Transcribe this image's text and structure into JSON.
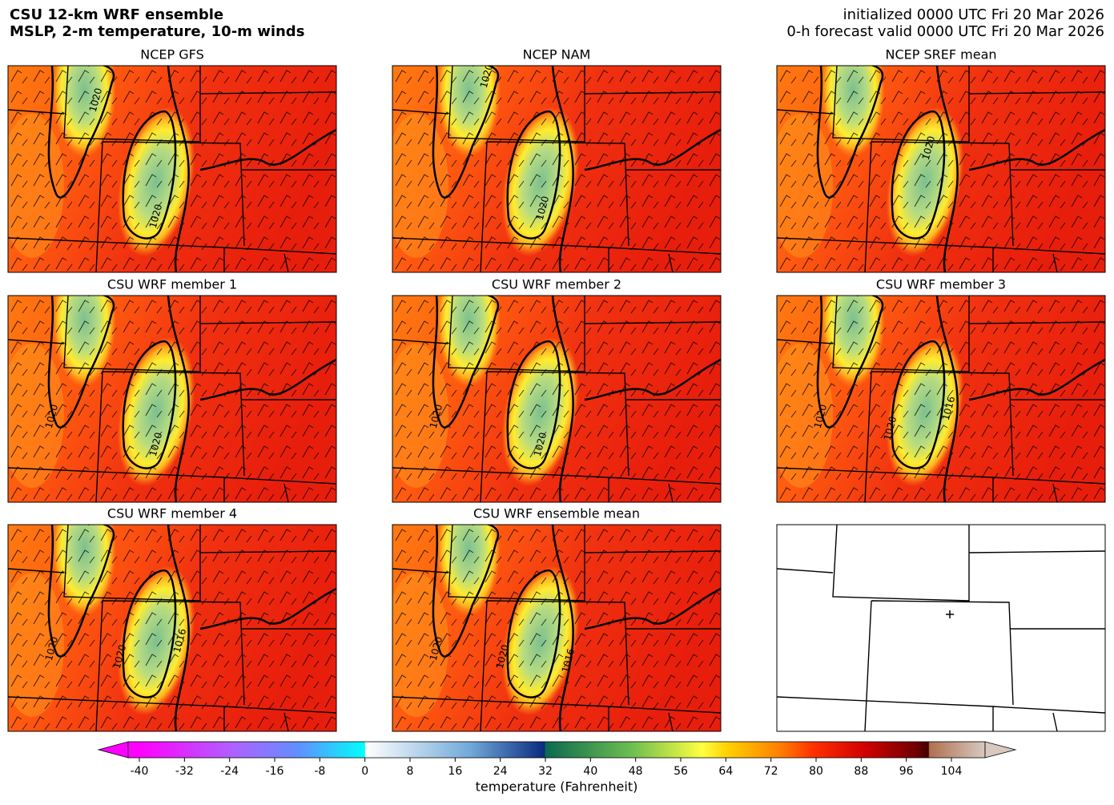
{
  "header": {
    "title": [
      "CSU 12-km WRF ensemble",
      "MSLP, 2-m temperature, 10-m winds"
    ],
    "init": "initialized 0000 UTC Fri 20 Mar 2026",
    "valid": "0-h forecast valid 0000 UTC Fri 20 Mar 2026"
  },
  "panels": [
    {
      "title": "NCEP GFS",
      "contour_labels": [
        "1020",
        "1020"
      ]
    },
    {
      "title": "NCEP NAM",
      "contour_labels": [
        "1020",
        "1020"
      ]
    },
    {
      "title": "NCEP SREF mean",
      "contour_labels": [
        "1020"
      ]
    },
    {
      "title": "CSU WRF member 1",
      "contour_labels": [
        "1020",
        "1020"
      ]
    },
    {
      "title": "CSU WRF member 2",
      "contour_labels": [
        "1020",
        "1020"
      ]
    },
    {
      "title": "CSU WRF member 3",
      "contour_labels": [
        "1020",
        "1020",
        "1016"
      ]
    },
    {
      "title": "CSU WRF member 4",
      "contour_labels": [
        "1020",
        "1020",
        "1016"
      ]
    },
    {
      "title": "CSU WRF ensemble mean",
      "contour_labels": [
        "1020",
        "1020",
        "1016"
      ]
    }
  ],
  "colorbar": {
    "lim": [
      -40,
      104
    ],
    "ticks": [
      -40,
      -32,
      -24,
      -16,
      -8,
      0,
      8,
      16,
      24,
      32,
      40,
      48,
      56,
      64,
      72,
      80,
      88,
      96,
      104
    ],
    "label": "temperature (Fahrenheit)"
  }
}
